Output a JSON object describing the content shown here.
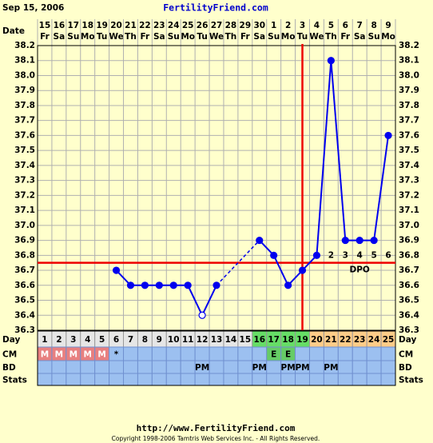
{
  "chart_data": {
    "type": "line",
    "title": "Sep 15, 2006",
    "site": "FertilityFriend.com",
    "date_label": "Date",
    "day_label": "Day",
    "row_labels": [
      "CM",
      "BD",
      "Stats"
    ],
    "dates": [
      15,
      16,
      17,
      18,
      19,
      20,
      21,
      22,
      23,
      24,
      25,
      26,
      27,
      28,
      29,
      30,
      1,
      2,
      3,
      4,
      5,
      6,
      7,
      8,
      9
    ],
    "weekdays": [
      "Fr",
      "Sa",
      "Su",
      "Mo",
      "Tu",
      "We",
      "Th",
      "Fr",
      "Sa",
      "Su",
      "Mo",
      "Tu",
      "We",
      "Th",
      "Fr",
      "Sa",
      "Su",
      "Mo",
      "Tu",
      "We",
      "Th",
      "Fr",
      "Sa",
      "Su",
      "Mo"
    ],
    "x": [
      1,
      2,
      3,
      4,
      5,
      6,
      7,
      8,
      9,
      10,
      11,
      12,
      13,
      14,
      15,
      16,
      17,
      18,
      19,
      20,
      21,
      22,
      23,
      24,
      25
    ],
    "values": [
      null,
      null,
      null,
      null,
      null,
      36.7,
      36.6,
      36.6,
      36.6,
      36.6,
      36.6,
      36.4,
      36.6,
      null,
      null,
      36.9,
      36.8,
      36.6,
      36.7,
      36.8,
      38.1,
      36.9,
      36.9,
      36.9,
      37.6
    ],
    "color": "#0000ee",
    "open_marker_days": [
      12
    ],
    "xlim": [
      0.5,
      25.5
    ],
    "ylim": [
      36.3,
      38.2
    ],
    "yticks": [
      36.3,
      36.4,
      36.5,
      36.6,
      36.7,
      36.8,
      36.9,
      {
        "value": 37,
        "label": "37.0"
      },
      37.1,
      37.2,
      37.3,
      37.4,
      37.5,
      37.6,
      37.7,
      37.8,
      37.9,
      {
        "value": 38,
        "label": "38.0"
      },
      38.1,
      38.2
    ],
    "grid": true,
    "coverline": 36.75,
    "ovulation_day": 19,
    "fertile_days": [
      16,
      17,
      18,
      19
    ],
    "dpo": [
      null,
      null,
      null,
      null,
      null,
      null,
      null,
      null,
      null,
      null,
      null,
      null,
      null,
      null,
      null,
      null,
      null,
      null,
      null,
      null,
      2,
      3,
      4,
      5,
      6
    ],
    "dpo_label": "DPO",
    "cm": [
      "M",
      "M",
      "M",
      "M",
      "M",
      "*",
      null,
      null,
      null,
      null,
      null,
      null,
      null,
      null,
      null,
      null,
      "E",
      "E",
      null,
      null,
      null,
      null,
      null,
      null,
      null
    ],
    "bd": [
      null,
      null,
      null,
      null,
      null,
      null,
      null,
      null,
      null,
      null,
      null,
      "PM",
      null,
      null,
      null,
      "PM",
      null,
      "PM",
      "PM",
      null,
      "PM",
      null,
      null,
      null,
      null
    ],
    "url": "http://www.FertilityFriend.com",
    "copyright": "Copyright 1998-2006 Tamtris Web Services Inc. - All Rights Reserved."
  }
}
